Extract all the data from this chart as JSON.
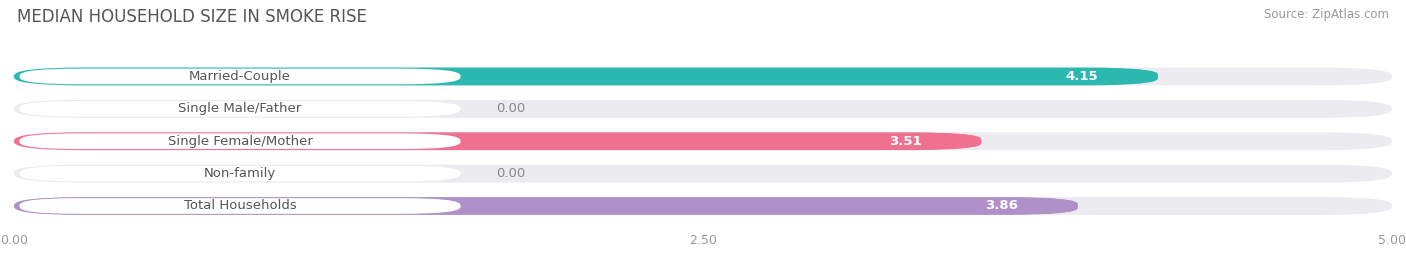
{
  "title": "MEDIAN HOUSEHOLD SIZE IN SMOKE RISE",
  "source": "Source: ZipAtlas.com",
  "categories": [
    "Married-Couple",
    "Single Male/Father",
    "Single Female/Mother",
    "Non-family",
    "Total Households"
  ],
  "values": [
    4.15,
    0.0,
    3.51,
    0.0,
    3.86
  ],
  "bar_colors": [
    "#2ab8b0",
    "#a0b4e8",
    "#f07090",
    "#f5c99a",
    "#b090c8"
  ],
  "bar_bg_color": "#ebebf0",
  "label_bg_color": "#ffffff",
  "xlim": [
    0,
    5.0
  ],
  "xtick_labels": [
    "0.00",
    "2.50",
    "5.00"
  ],
  "label_fontsize": 9.5,
  "value_fontsize": 9.5,
  "title_fontsize": 12,
  "fig_bg_color": "#ffffff",
  "bar_height": 0.55,
  "bar_gap": 0.45
}
